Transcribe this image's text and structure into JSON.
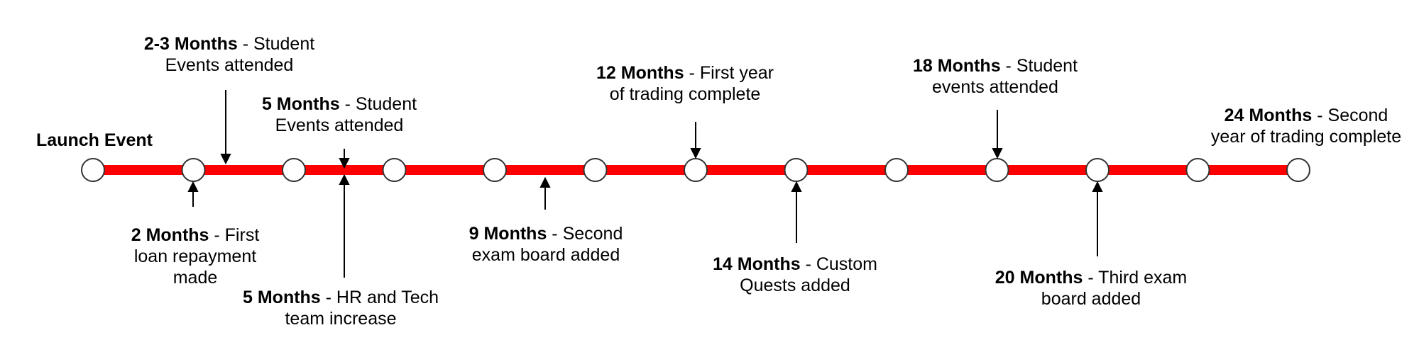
{
  "colors": {
    "line": "#ff0000",
    "node_fill": "#ffffff",
    "node_stroke": "#333333",
    "text": "#000000"
  },
  "nodes": 13,
  "events": [
    {
      "bold": "Launch Event",
      "rest": "",
      "line2": ""
    },
    {
      "bold": "2-3 Months",
      "rest": " - Student",
      "line2": "Events attended"
    },
    {
      "bold": "5 Months",
      "rest": " - Student",
      "line2": "Events attended"
    },
    {
      "bold": "12 Months",
      "rest": " -  First year",
      "line2": "of trading complete"
    },
    {
      "bold": "18 Months",
      "rest": " - Student",
      "line2": "events attended"
    },
    {
      "bold": "24 Months",
      "rest": " - Second",
      "line2": "year of trading complete"
    },
    {
      "bold": "2 Months",
      "rest": " - First",
      "line2": "loan repayment",
      "line3": "made"
    },
    {
      "bold": "5 Months",
      "rest": " - HR and Tech",
      "line2": "team increase"
    },
    {
      "bold": "9 Months",
      "rest": " - Second",
      "line2": "exam board added"
    },
    {
      "bold": "14 Months",
      "rest": " - Custom",
      "line2": "Quests added"
    },
    {
      "bold": "20 Months",
      "rest": " - Third exam",
      "line2": "board added"
    }
  ]
}
